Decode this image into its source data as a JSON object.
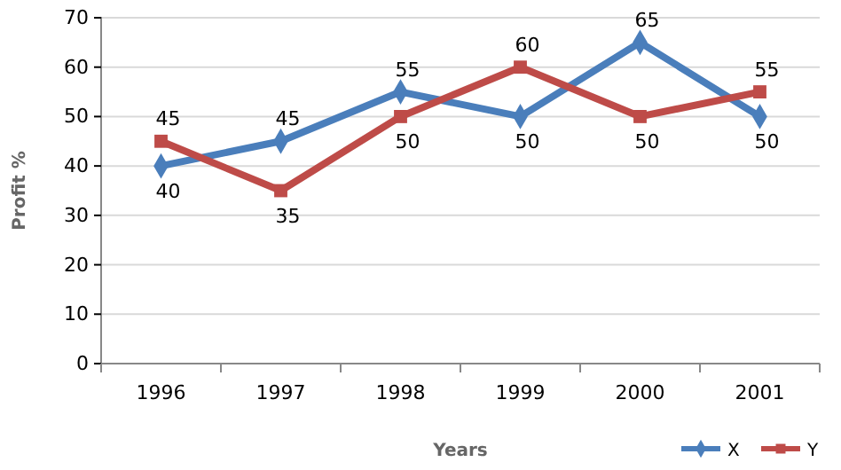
{
  "chart_data": {
    "type": "line",
    "xlabel": "Years",
    "ylabel": "Profit %",
    "categories": [
      "1996",
      "1997",
      "1998",
      "1999",
      "2000",
      "2001"
    ],
    "series": [
      {
        "name": "X",
        "color": "#4a7ebb",
        "marker": "diamond",
        "values": [
          40,
          45,
          55,
          50,
          65,
          50
        ]
      },
      {
        "name": "Y",
        "color": "#be4b48",
        "marker": "square",
        "values": [
          45,
          35,
          50,
          60,
          50,
          55
        ]
      }
    ],
    "ylim": [
      0,
      70
    ],
    "yticks": [
      0,
      10,
      20,
      30,
      40,
      50,
      60,
      70
    ],
    "grid": "y",
    "legend": "bottom right",
    "data_labels": true
  }
}
